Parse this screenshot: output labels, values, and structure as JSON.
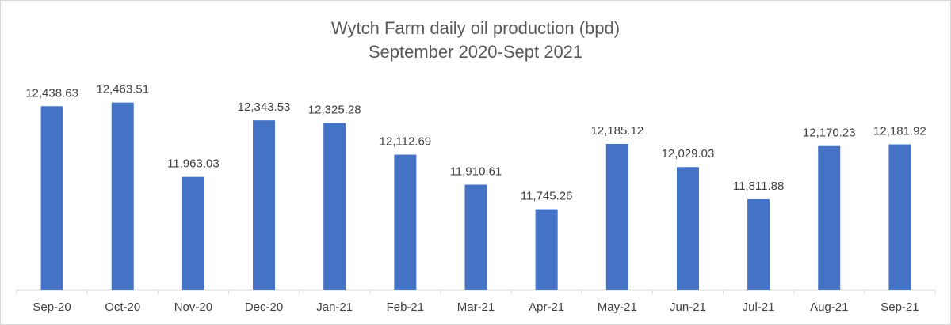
{
  "chart_data": {
    "type": "bar",
    "title": "Wytch Farm daily oil production (bpd)",
    "subtitle": "September 2020-Sept 2021",
    "categories": [
      "Sep-20",
      "Oct-20",
      "Nov-20",
      "Dec-20",
      "Jan-21",
      "Feb-21",
      "Mar-21",
      "Apr-21",
      "May-21",
      "Jun-21",
      "Jul-21",
      "Aug-21",
      "Sep-21"
    ],
    "values": [
      12438.63,
      12463.51,
      11963.03,
      12343.53,
      12325.28,
      12112.69,
      11910.61,
      11745.26,
      12185.12,
      12029.03,
      11811.88,
      12170.23,
      12181.92
    ],
    "value_labels": [
      "12,438.63",
      "12,463.51",
      "11,963.03",
      "12,343.53",
      "12,325.28",
      "12,112.69",
      "11,910.61",
      "11,745.26",
      "12,185.12",
      "12,029.03",
      "11,811.88",
      "12,170.23",
      "12,181.92"
    ],
    "color": "#4472c4",
    "ylim": [
      11200,
      12600
    ]
  }
}
